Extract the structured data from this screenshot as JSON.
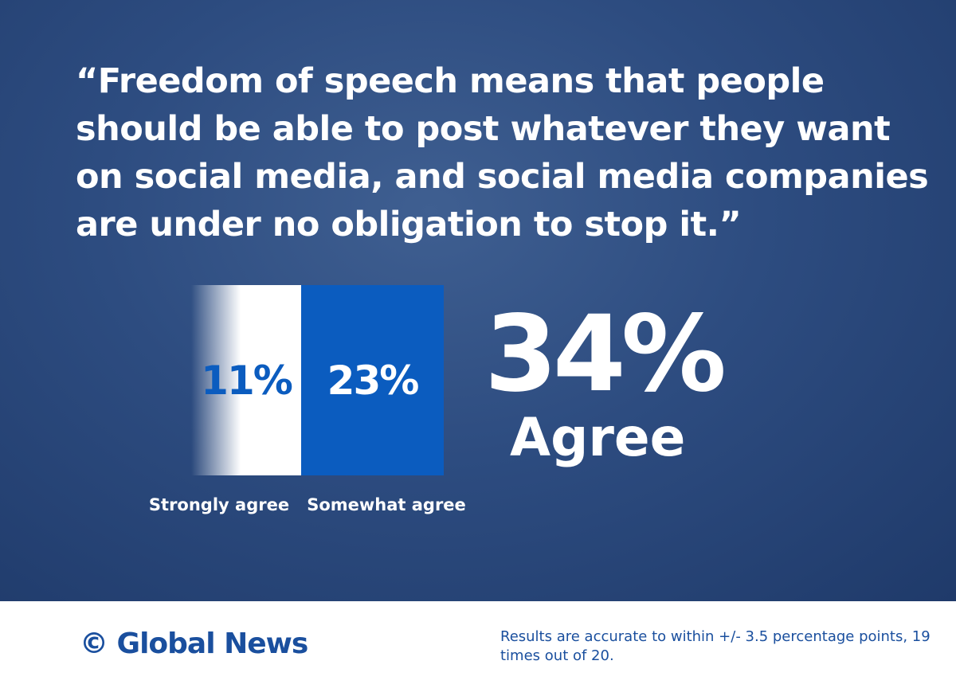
{
  "chart_data": {
    "type": "tiles",
    "title": "“Freedom of speech means that people should be able to post whatever they want on social media, and social media companies are under no obligation to stop it.”",
    "categories": [
      "Strongly agree",
      "Somewhat agree"
    ],
    "values": [
      11,
      23
    ],
    "value_labels": [
      "11%",
      "23%"
    ],
    "colors": [
      "#ffffff",
      "#0b5cbf"
    ],
    "label_colors": [
      "#0b5cbf",
      "#ffffff"
    ],
    "headline": "34%",
    "headline_caption": "Agree",
    "source": "© Global News",
    "note": "Results are accurate to within +/- 3.5 percentage points, 19 times out of 20."
  }
}
